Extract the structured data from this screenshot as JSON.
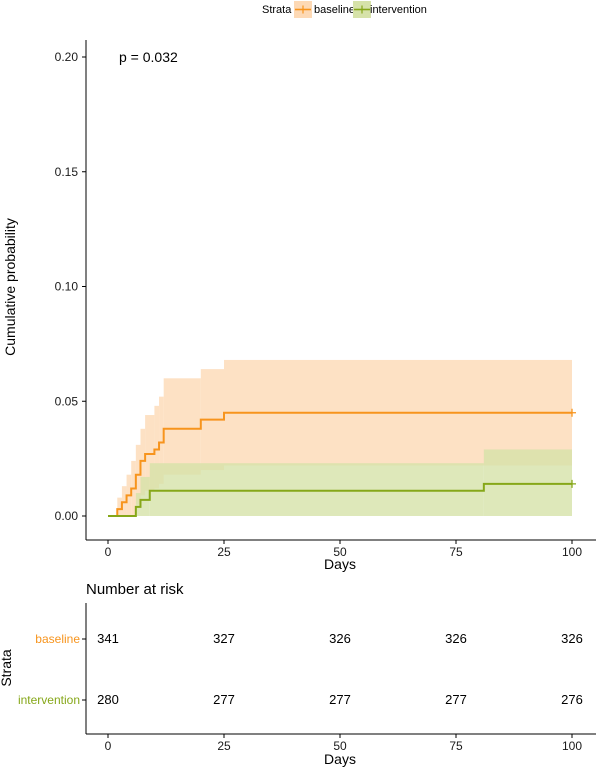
{
  "chart_data": {
    "type": "line",
    "subtype": "step",
    "xlabel": "Days",
    "ylabel": "Cumulative probability",
    "xlim": [
      0,
      100
    ],
    "ylim": [
      0,
      0.2
    ],
    "x_ticks": [
      0,
      25,
      50,
      75,
      100
    ],
    "y_ticks": [
      "0.00",
      "0.05",
      "0.10",
      "0.15",
      "0.20"
    ],
    "annotation": "p = 0.032",
    "legend": {
      "title": "Strata",
      "position": "top"
    },
    "series": [
      {
        "name": "baseline",
        "color": "#F7941D",
        "ci_color": "#FDD9B5",
        "steps": [
          [
            0,
            0
          ],
          [
            2,
            0.003
          ],
          [
            3,
            0.006
          ],
          [
            4,
            0.009
          ],
          [
            5,
            0.012
          ],
          [
            6,
            0.018
          ],
          [
            7,
            0.024
          ],
          [
            8,
            0.027
          ],
          [
            10,
            0.029
          ],
          [
            11,
            0.032
          ],
          [
            12,
            0.038
          ],
          [
            20,
            0.042
          ],
          [
            25,
            0.045
          ],
          [
            100,
            0.045
          ]
        ],
        "ci_upper": [
          [
            0,
            0
          ],
          [
            2,
            0.008
          ],
          [
            3,
            0.013
          ],
          [
            4,
            0.018
          ],
          [
            5,
            0.024
          ],
          [
            6,
            0.031
          ],
          [
            7,
            0.038
          ],
          [
            8,
            0.044
          ],
          [
            10,
            0.048
          ],
          [
            11,
            0.052
          ],
          [
            12,
            0.06
          ],
          [
            20,
            0.064
          ],
          [
            25,
            0.068
          ],
          [
            100,
            0.068
          ]
        ],
        "ci_lower": [
          [
            0,
            0
          ],
          [
            6,
            0.005
          ],
          [
            7,
            0.009
          ],
          [
            8,
            0.011
          ],
          [
            10,
            0.012
          ],
          [
            11,
            0.014
          ],
          [
            12,
            0.018
          ],
          [
            20,
            0.02
          ],
          [
            25,
            0.022
          ],
          [
            100,
            0.022
          ]
        ]
      },
      {
        "name": "intervention",
        "color": "#86A719",
        "ci_color": "#D6E2A9",
        "steps": [
          [
            0,
            0
          ],
          [
            6,
            0.004
          ],
          [
            7,
            0.007
          ],
          [
            9,
            0.011
          ],
          [
            81,
            0.014
          ],
          [
            100,
            0.014
          ]
        ],
        "ci_upper": [
          [
            0,
            0
          ],
          [
            6,
            0.01
          ],
          [
            7,
            0.017
          ],
          [
            9,
            0.023
          ],
          [
            81,
            0.029
          ],
          [
            100,
            0.029
          ]
        ],
        "ci_lower": [
          [
            0,
            0
          ],
          [
            100,
            0
          ]
        ]
      }
    ]
  },
  "risk_table": {
    "title": "Number at risk",
    "ylabel": "Strata",
    "xlabel": "Days",
    "x_ticks": [
      0,
      25,
      50,
      75,
      100
    ],
    "rows": [
      {
        "label": "baseline",
        "color": "#F7941D",
        "values": [
          "341",
          "327",
          "326",
          "326",
          "326"
        ]
      },
      {
        "label": "intervention",
        "color": "#86A719",
        "values": [
          "280",
          "277",
          "277",
          "277",
          "276"
        ]
      }
    ]
  }
}
